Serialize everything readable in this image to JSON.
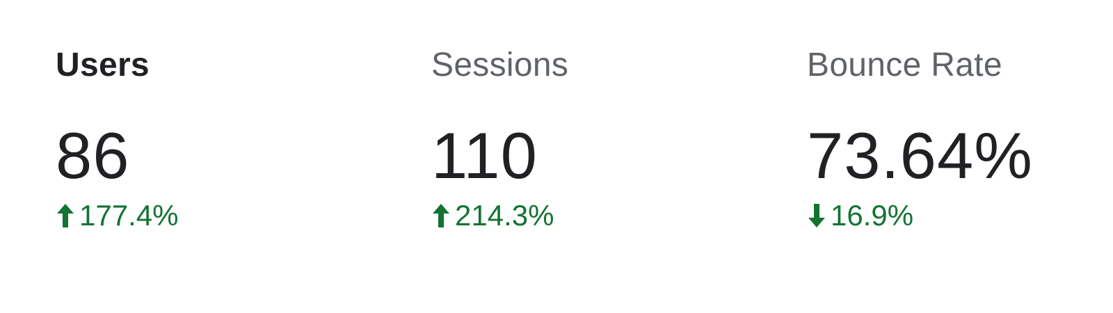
{
  "scorecards": [
    {
      "label": "Users",
      "value": "86",
      "change": "177.4%",
      "direction": "up",
      "direction_icon": "arrow-up-icon",
      "selected": true
    },
    {
      "label": "Sessions",
      "value": "110",
      "change": "214.3%",
      "direction": "up",
      "direction_icon": "arrow-up-icon",
      "selected": false
    },
    {
      "label": "Bounce Rate",
      "value": "73.64%",
      "change": "16.9%",
      "direction": "down",
      "direction_icon": "arrow-down-icon",
      "selected": false
    }
  ],
  "colors": {
    "positive_change": "#137333",
    "selected_label": "#202124",
    "unselected_label": "#5f6368",
    "value_text": "#202124"
  }
}
